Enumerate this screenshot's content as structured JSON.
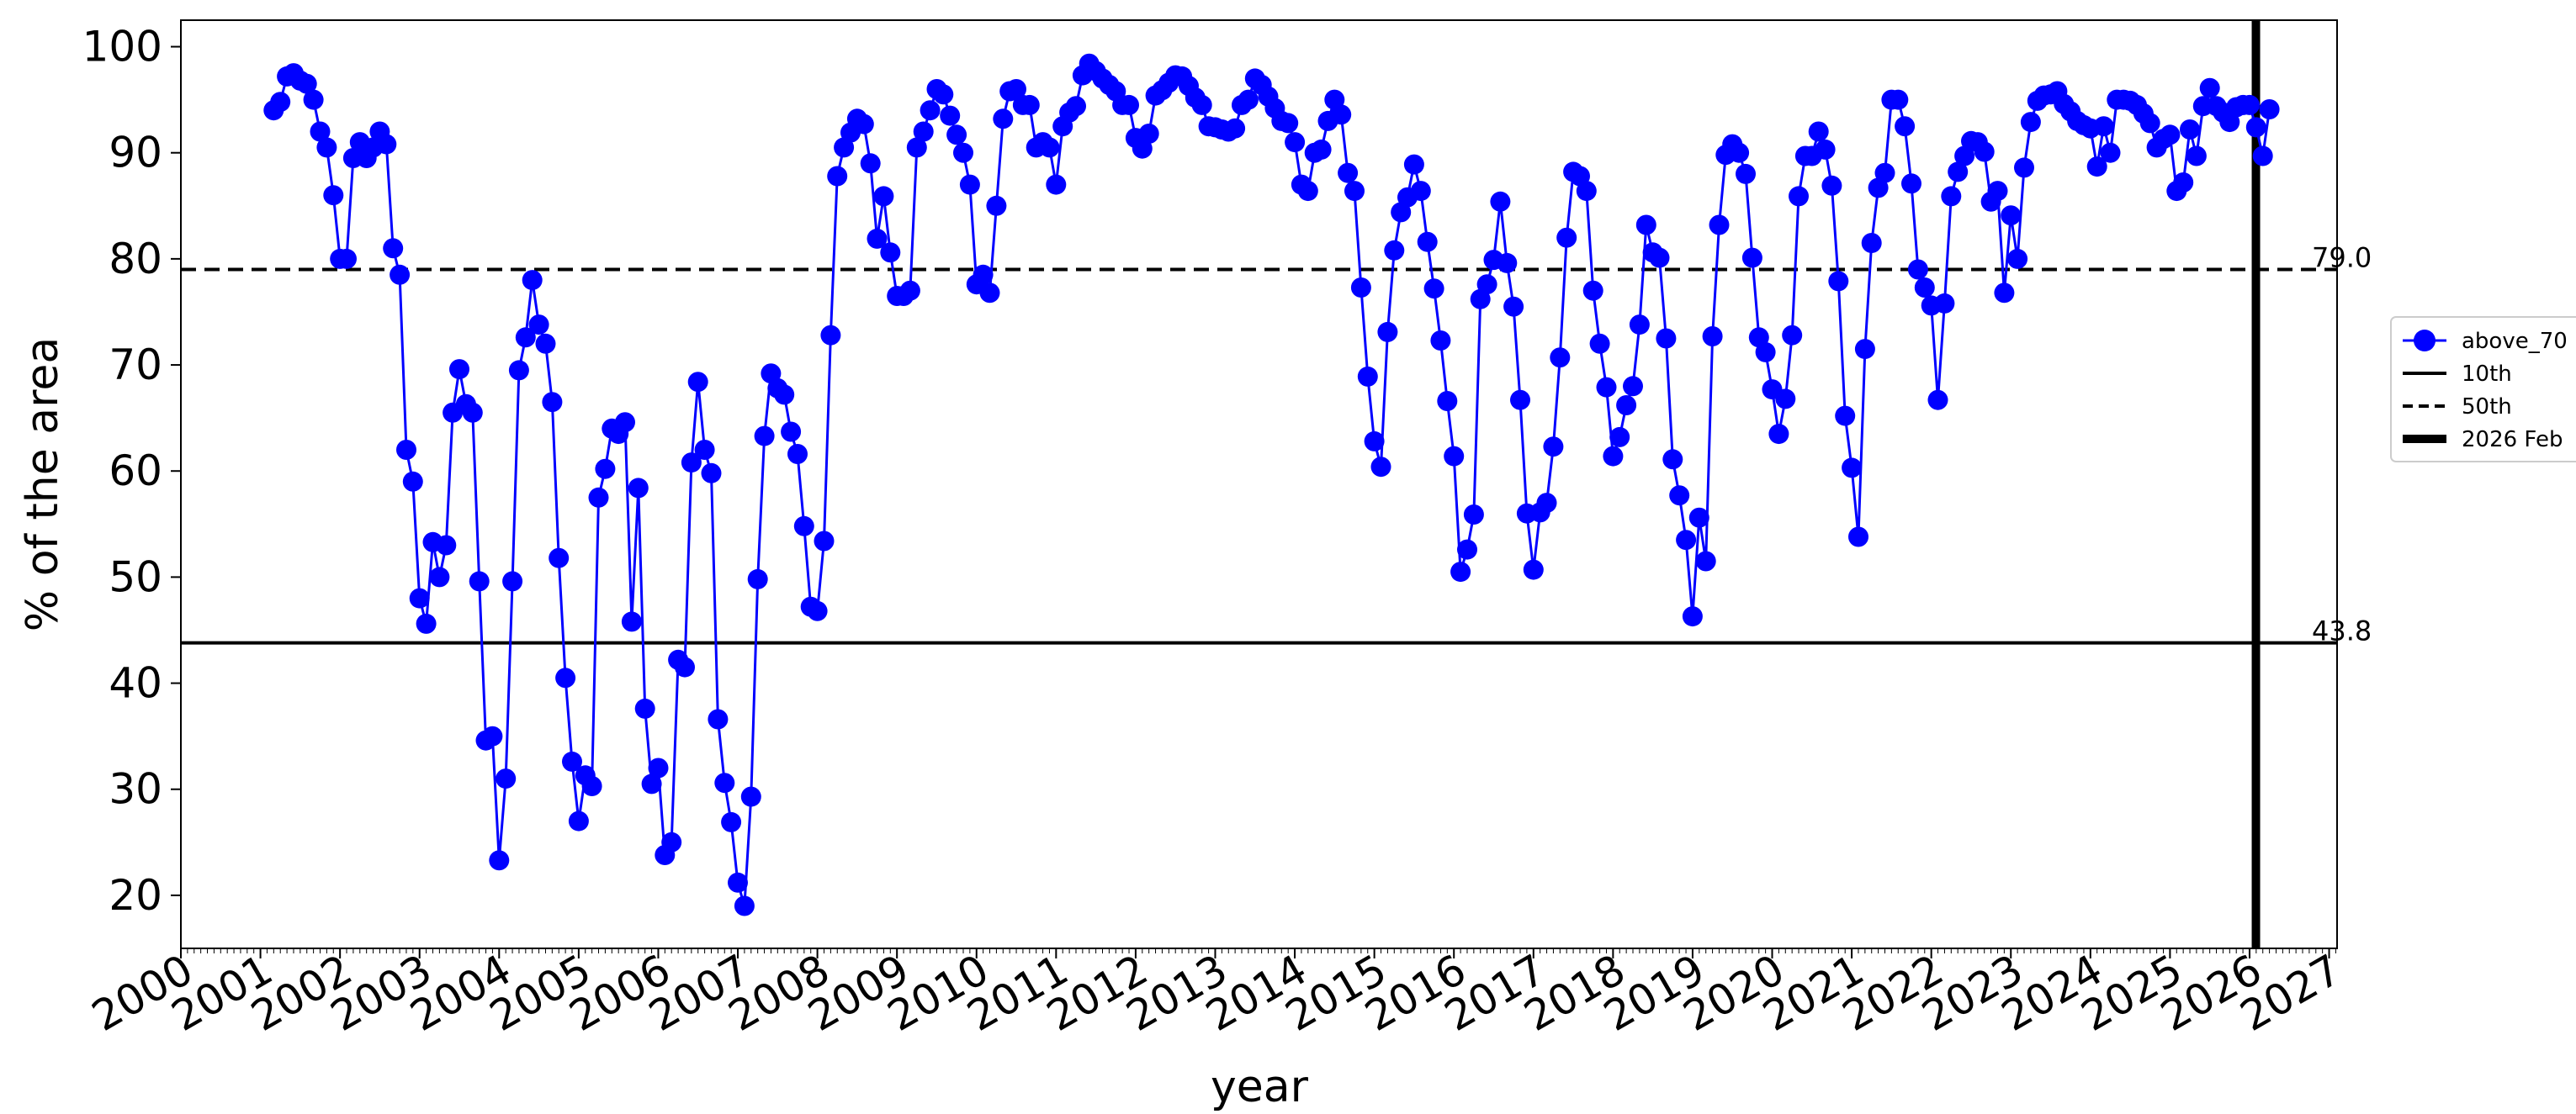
{
  "chart_data": {
    "type": "line",
    "xlabel": "year",
    "ylabel": "% of the area",
    "x_ticks": [
      "2000",
      "2001",
      "2002",
      "2003",
      "2004",
      "2005",
      "2006",
      "2007",
      "2008",
      "2009",
      "2010",
      "2011",
      "2012",
      "2013",
      "2014",
      "2015",
      "2016",
      "2017",
      "2018",
      "2019",
      "2020",
      "2021",
      "2022",
      "2023",
      "2024",
      "2025",
      "2026",
      "2027"
    ],
    "y_ticks": [
      20,
      30,
      40,
      50,
      60,
      70,
      80,
      90,
      100
    ],
    "xlim": [
      2000.0,
      2027.1
    ],
    "ylim": [
      15,
      102.5
    ],
    "grid": false,
    "legend_position": "right",
    "colors": {
      "series": "#0000ff",
      "reference": "#000000"
    },
    "series": [
      {
        "name": "above_70",
        "marker": "circle",
        "color": "#0000ff",
        "start_year": 2001,
        "start_month": 3,
        "step_months": 1,
        "values": [
          94,
          94.8,
          97.2,
          97.5,
          96.8,
          96.5,
          95,
          92,
          90.5,
          86,
          80,
          80,
          89.5,
          91,
          89.5,
          90.5,
          92,
          90.8,
          81,
          78.5,
          62,
          59,
          48,
          45.6,
          53.3,
          50,
          53,
          65.5,
          69.6,
          66.3,
          65.5,
          49.6,
          34.6,
          35,
          23.3,
          31,
          49.6,
          69.5,
          72.6,
          78,
          73.8,
          72,
          66.5,
          51.8,
          40.5,
          32.6,
          27,
          31.3,
          30.3,
          57.5,
          60.2,
          64,
          63.5,
          64.6,
          45.8,
          58.4,
          37.6,
          30.5,
          32,
          23.8,
          25,
          42.2,
          41.5,
          60.8,
          68.4,
          62,
          59.8,
          36.6,
          30.6,
          26.9,
          21.2,
          19,
          29.3,
          49.8,
          63.3,
          69.2,
          67.8,
          67.2,
          63.7,
          61.6,
          54.8,
          47.2,
          46.8,
          53.4,
          72.8,
          87.8,
          90.5,
          91.9,
          93.2,
          92.7,
          89,
          81.9,
          85.9,
          80.6,
          76.5,
          76.5,
          77,
          90.5,
          92,
          94,
          96,
          95.5,
          93.5,
          91.7,
          90,
          87,
          77.6,
          78.5,
          76.8,
          85,
          93.2,
          95.8,
          96,
          94.5,
          94.5,
          90.5,
          91,
          90.5,
          87,
          92.5,
          93.8,
          94.4,
          97.3,
          98.4,
          97.7,
          97,
          96.4,
          95.8,
          94.5,
          94.5,
          91.4,
          90.4,
          91.8,
          95.4,
          95.9,
          96.6,
          97.3,
          97.2,
          96.3,
          95.2,
          94.5,
          92.5,
          92.4,
          92.2,
          92,
          92.3,
          94.5,
          95,
          97,
          96.4,
          95.3,
          94.2,
          93,
          92.8,
          91,
          87,
          86.4,
          90,
          90.3,
          93,
          95,
          93.6,
          88.1,
          86.4,
          77.3,
          68.9,
          62.8,
          60.4,
          73.1,
          80.8,
          84.4,
          85.8,
          88.9,
          86.4,
          81.6,
          77.2,
          72.3,
          66.6,
          61.4,
          50.5,
          52.6,
          55.9,
          76.2,
          77.6,
          79.9,
          85.4,
          79.6,
          75.5,
          66.7,
          56,
          50.7,
          56.1,
          57,
          62.3,
          70.7,
          82,
          88.2,
          87.8,
          86.4,
          77,
          72,
          67.9,
          61.4,
          63.2,
          66.2,
          68,
          73.8,
          83.2,
          80.6,
          80.1,
          72.5,
          61.1,
          57.7,
          53.5,
          46.3,
          55.6,
          51.5,
          72.7,
          83.2,
          89.8,
          90.8,
          90,
          88,
          80.1,
          72.6,
          71.2,
          67.7,
          63.5,
          66.8,
          72.8,
          85.9,
          89.7,
          89.7,
          92,
          90.3,
          86.9,
          77.9,
          65.2,
          60.3,
          53.8,
          71.5,
          81.5,
          86.7,
          88.1,
          95,
          95,
          92.5,
          87.1,
          79,
          77.3,
          75.6,
          66.7,
          75.8,
          85.9,
          88.2,
          89.7,
          91.1,
          91,
          90.1,
          85.4,
          86.4,
          76.8,
          84.1,
          80,
          88.6,
          92.9,
          94.9,
          95.4,
          95.5,
          95.8,
          94.6,
          93.9,
          93,
          92.6,
          92.3,
          88.7,
          92.5,
          90,
          95,
          95,
          94.9,
          94.5,
          93.7,
          92.8,
          90.5,
          91.3,
          91.7,
          86.4,
          87.2,
          92.2,
          89.7,
          94.4,
          96.1,
          94.4,
          93.8,
          92.9,
          94.3,
          94.5,
          94.5,
          92.4,
          89.7,
          94.1
        ]
      },
      {
        "name": "10th",
        "type": "hline",
        "value": 43.8,
        "label": "43.8",
        "line_style": "solid"
      },
      {
        "name": "50th",
        "type": "hline",
        "value": 79.0,
        "label": "79.0",
        "line_style": "dashed"
      },
      {
        "name": "2026 Feb",
        "type": "vline",
        "value": 2026.08,
        "line_style": "thick-solid"
      }
    ]
  },
  "legend": {
    "items": [
      {
        "label": "above_70",
        "icon": "blue-line-circle-icon"
      },
      {
        "label": "10th",
        "icon": "solid-line-icon"
      },
      {
        "label": "50th",
        "icon": "dashed-line-icon"
      },
      {
        "label": "2026 Feb",
        "icon": "thick-line-icon"
      }
    ]
  }
}
